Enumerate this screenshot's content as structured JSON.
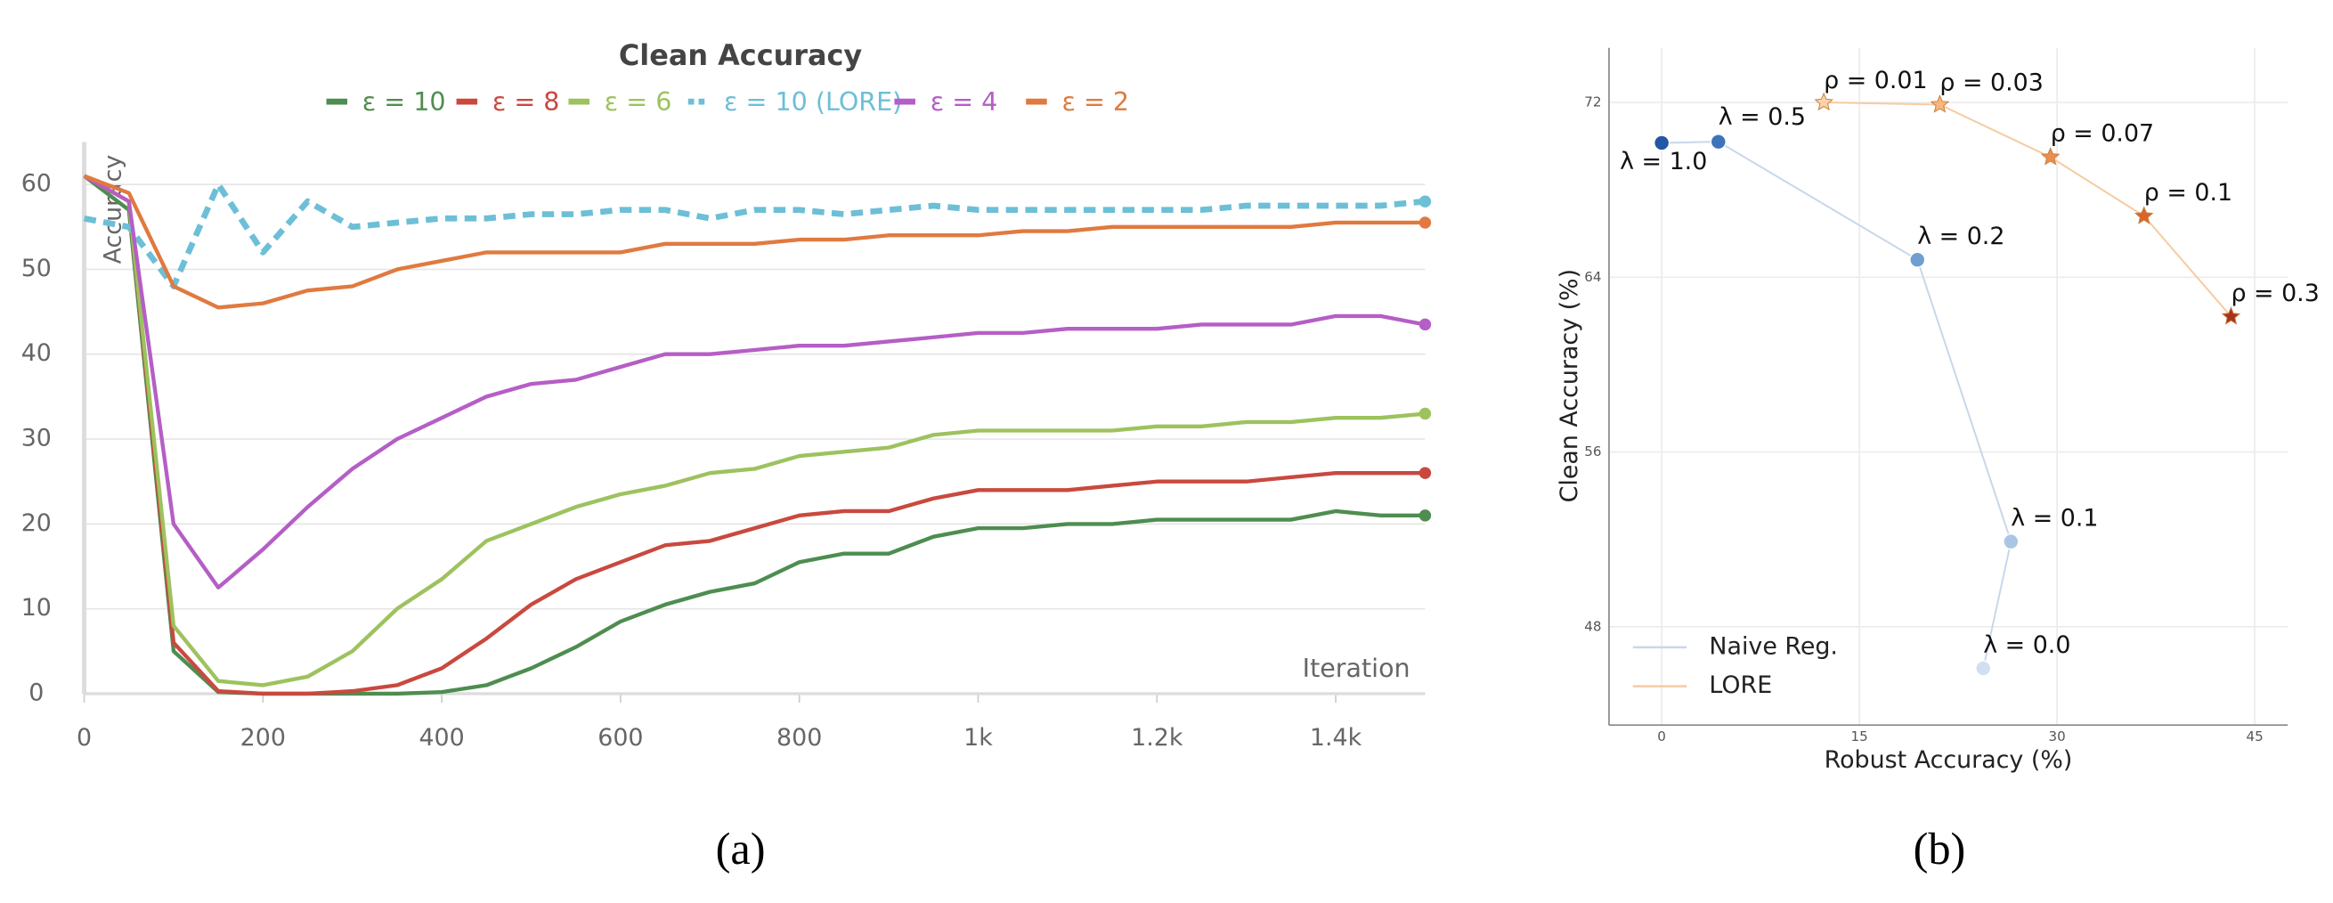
{
  "chart_data": [
    {
      "type": "line",
      "title": "Clean Accuracy",
      "xlabel": "Iteration",
      "ylabel": "Accuracy",
      "x": [
        0,
        50,
        100,
        150,
        200,
        250,
        300,
        350,
        400,
        450,
        500,
        550,
        600,
        650,
        700,
        750,
        800,
        850,
        900,
        950,
        1000,
        1050,
        1100,
        1150,
        1200,
        1250,
        1300,
        1350,
        1400,
        1450,
        1500
      ],
      "xlim": [
        0,
        1500
      ],
      "xticks": [
        0,
        200,
        400,
        600,
        800,
        {
          "value": 1000,
          "label": "1k"
        },
        {
          "value": 1200,
          "label": "1.2k"
        },
        {
          "value": 1400,
          "label": "1.4k"
        }
      ],
      "ylim": [
        0,
        65
      ],
      "yticks": [
        0,
        10,
        20,
        30,
        40,
        50,
        60
      ],
      "grid": true,
      "legend": "top",
      "series": [
        {
          "name": "ε = 10",
          "color": "#4e8d50",
          "style": "solid",
          "values": [
            61,
            57,
            5,
            0.2,
            0,
            0,
            0,
            0,
            0.2,
            1,
            3,
            5.5,
            8.5,
            10.5,
            12,
            13,
            15.5,
            16.5,
            16.5,
            18.5,
            19.5,
            19.5,
            20,
            20,
            20.5,
            20.5,
            20.5,
            20.5,
            21.5,
            21,
            21
          ]
        },
        {
          "name": "ε = 8",
          "color": "#c9493f",
          "style": "solid",
          "values": [
            61,
            58,
            6,
            0.3,
            0,
            0,
            0.3,
            1,
            3,
            6.5,
            10.5,
            13.5,
            15.5,
            17.5,
            18,
            19.5,
            21,
            21.5,
            21.5,
            23,
            24,
            24,
            24,
            24.5,
            25,
            25,
            25,
            25.5,
            26,
            26,
            26
          ]
        },
        {
          "name": "ε = 6",
          "color": "#9dc25e",
          "style": "solid",
          "values": [
            61,
            58,
            8,
            1.5,
            1,
            2,
            5,
            10,
            13.5,
            18,
            20,
            22,
            23.5,
            24.5,
            26,
            26.5,
            28,
            28.5,
            29,
            30.5,
            31,
            31,
            31,
            31,
            31.5,
            31.5,
            32,
            32,
            32.5,
            32.5,
            33
          ]
        },
        {
          "name": "ε = 10 (LORE)",
          "color": "#6cbfd6",
          "style": "dashed",
          "values": [
            56,
            55,
            48,
            60,
            52,
            58,
            55,
            55.5,
            56,
            56,
            56.5,
            56.5,
            57,
            57,
            56,
            57,
            57,
            56.5,
            57,
            57.5,
            57,
            57,
            57,
            57,
            57,
            57,
            57.5,
            57.5,
            57.5,
            57.5,
            58
          ]
        },
        {
          "name": "ε = 4",
          "color": "#b55ec6",
          "style": "solid",
          "values": [
            61,
            58,
            20,
            12.5,
            17,
            22,
            26.5,
            30,
            32.5,
            35,
            36.5,
            37,
            38.5,
            40,
            40,
            40.5,
            41,
            41,
            41.5,
            42,
            42.5,
            42.5,
            43,
            43,
            43,
            43.5,
            43.5,
            43.5,
            44.5,
            44.5,
            43.5
          ]
        },
        {
          "name": "ε = 2",
          "color": "#e07a40",
          "style": "solid",
          "values": [
            61,
            59,
            48,
            45.5,
            46,
            47.5,
            48,
            50,
            51,
            52,
            52,
            52,
            52,
            53,
            53,
            53,
            53.5,
            53.5,
            54,
            54,
            54,
            54.5,
            54.5,
            55,
            55,
            55,
            55,
            55,
            55.5,
            55.5,
            55.5
          ]
        }
      ]
    },
    {
      "type": "scatter",
      "xlabel": "Robust Accuracy (%)",
      "ylabel": "Clean Accuracy (%)",
      "xlim": [
        -4,
        47.5
      ],
      "xticks": [
        0,
        15,
        30,
        45
      ],
      "ylim": [
        43.5,
        74.5
      ],
      "yticks": [
        48,
        56,
        64,
        72
      ],
      "grid": true,
      "legend": "lower left",
      "series": [
        {
          "name": "Naive Reg.",
          "color": "#c8d8ea",
          "marker": "circle",
          "labels": [
            "λ = 1.0",
            "λ = 0.5",
            "λ = 0.2",
            "λ = 0.1",
            "λ = 0.0"
          ],
          "x": [
            0,
            4.3,
            19.4,
            26.5,
            24.4
          ],
          "y": [
            70.15,
            70.2,
            64.8,
            51.9,
            46.1
          ],
          "colors": [
            "#2456a6",
            "#3d73b8",
            "#6f9fd0",
            "#a9c6e4",
            "#d0e0f1"
          ]
        },
        {
          "name": "LORE",
          "color": "#f6cba3",
          "marker": "star",
          "labels": [
            "ρ = 0.01",
            "ρ = 0.03",
            "ρ = 0.07",
            "ρ = 0.1",
            "ρ = 0.3"
          ],
          "x": [
            12.3,
            21.1,
            29.5,
            36.6,
            43.2
          ],
          "y": [
            72.0,
            71.9,
            69.5,
            66.8,
            62.2
          ],
          "colors": [
            "#fbd3a8",
            "#f6b67e",
            "#ec8e4f",
            "#d9652b",
            "#a8321a"
          ]
        }
      ]
    }
  ],
  "captions": [
    "(a)",
    "(b)"
  ]
}
